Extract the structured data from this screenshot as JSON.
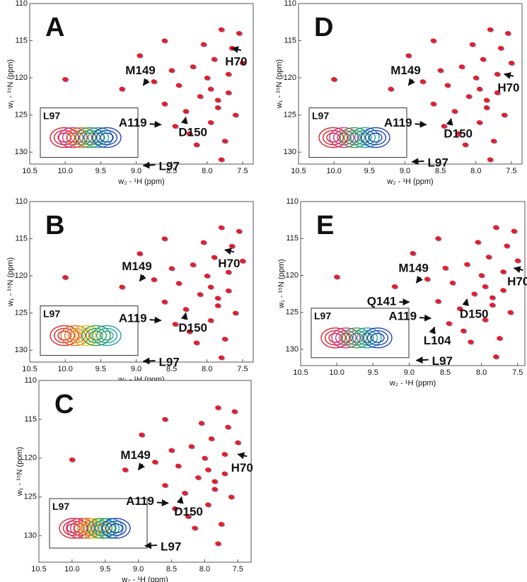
{
  "chart_data": [
    {
      "type": "scatter",
      "letter": "A",
      "xlabel": "w₂ - ¹H (ppm)",
      "ylabel": "w₁ - ¹⁵N (ppm)",
      "xlim": [
        10.5,
        7.35
      ],
      "ylim": [
        110,
        131.6
      ],
      "xticks": [
        10.5,
        {
          "value": 10,
          "label": "10.0"
        },
        9.5,
        {
          "value": 9,
          "label": "9.0"
        },
        8.5,
        {
          "value": 8,
          "label": "8.0"
        },
        7.5
      ],
      "yticks": [
        110,
        115,
        120,
        125,
        130
      ],
      "series": [
        {
          "color": "#e0202a",
          "x": [
            10.0,
            9.2,
            8.95,
            8.75,
            8.6,
            8.5,
            8.4,
            8.3,
            8.2,
            8.1,
            8.05,
            8.0,
            7.95,
            7.9,
            7.85,
            7.8,
            7.75,
            7.7,
            7.65,
            7.6,
            7.55,
            7.5,
            8.25,
            8.15,
            7.95,
            7.8,
            8.45,
            8.6,
            7.7,
            7.85
          ],
          "y": [
            120.2,
            121.5,
            117.0,
            120.5,
            123.5,
            119.0,
            121.0,
            124.5,
            118.5,
            122.5,
            115.5,
            120.0,
            126.0,
            117.5,
            123.0,
            113.5,
            128.5,
            119.5,
            116.0,
            125.0,
            114.0,
            118.0,
            127.5,
            129.0,
            121.5,
            131.0,
            126.5,
            115.0,
            122.0,
            124.0
          ]
        }
      ],
      "annotations": [
        {
          "text": "M149",
          "x": 8.9,
          "y": 121.0
        },
        {
          "text": "A119",
          "x": 8.65,
          "y": 126.3
        },
        {
          "text": "D150",
          "x": 8.3,
          "y": 125.3
        },
        {
          "text": "L97",
          "x": 8.9,
          "y": 131.8
        },
        {
          "text": "H70",
          "x": 7.65,
          "y": 116.0
        }
      ],
      "inset": {
        "label": "L97",
        "colors": [
          "#e0202a",
          "#d0308a",
          "#e07020",
          "#30a040",
          "#20a0a0",
          "#2040c0"
        ]
      }
    },
    {
      "type": "scatter",
      "letter": "B",
      "xlabel": "w₂ - ¹H (ppm)",
      "ylabel": "w₁ - ¹⁵N (ppm)",
      "xlim": [
        10.5,
        7.35
      ],
      "ylim": [
        110,
        131.6
      ],
      "xticks": [
        10.5,
        {
          "value": 10,
          "label": "10.0"
        },
        9.5,
        {
          "value": 9,
          "label": "9.0"
        },
        8.5,
        {
          "value": 8,
          "label": "8.0"
        },
        7.5
      ],
      "yticks": [
        110,
        115,
        120,
        125,
        130
      ],
      "series": [
        {
          "color": "#e0202a",
          "x": [
            10.0,
            9.2,
            8.95,
            8.75,
            8.6,
            8.5,
            8.4,
            8.3,
            8.2,
            8.1,
            8.05,
            8.0,
            7.95,
            7.9,
            7.85,
            7.8,
            7.75,
            7.7,
            7.65,
            7.6,
            7.55,
            7.5,
            8.25,
            8.15,
            7.95,
            7.8,
            8.45,
            8.6,
            7.7,
            7.85
          ],
          "y": [
            120.2,
            121.5,
            117.0,
            120.5,
            123.5,
            119.0,
            121.0,
            124.5,
            118.5,
            122.5,
            115.5,
            120.0,
            126.0,
            117.5,
            123.0,
            113.5,
            128.5,
            119.5,
            116.0,
            125.0,
            114.0,
            118.0,
            127.5,
            129.0,
            121.5,
            131.0,
            126.5,
            115.0,
            122.0,
            124.0
          ]
        }
      ],
      "annotations": [
        {
          "text": "M149",
          "x": 8.95,
          "y": 120.7
        },
        {
          "text": "A119",
          "x": 8.65,
          "y": 126.0
        },
        {
          "text": "D150",
          "x": 8.3,
          "y": 125.0
        },
        {
          "text": "L97",
          "x": 8.9,
          "y": 131.5
        },
        {
          "text": "H70",
          "x": 7.75,
          "y": 116.5
        }
      ],
      "inset": {
        "label": "L97",
        "colors": [
          "#e0202a",
          "#e07020",
          "#e0c020",
          "#30a040",
          "#20a0a0"
        ]
      }
    },
    {
      "type": "scatter",
      "letter": "C",
      "xlabel": "w₂ - ¹H (ppm)",
      "ylabel": "w₁ - ¹⁵N (ppm)",
      "xlim": [
        10.5,
        7.3
      ],
      "ylim": [
        110,
        133.4
      ],
      "xticks": [
        10.5,
        {
          "value": 10,
          "label": "10.0"
        },
        9.5,
        {
          "value": 9,
          "label": "9.0"
        },
        8.5,
        {
          "value": 8,
          "label": "8.0"
        },
        7.5
      ],
      "yticks": [
        110,
        115,
        120,
        125,
        130
      ],
      "series": [
        {
          "color": "#e0202a",
          "x": [
            10.0,
            9.2,
            8.95,
            8.75,
            8.6,
            8.5,
            8.4,
            8.3,
            8.2,
            8.1,
            8.05,
            8.0,
            7.95,
            7.9,
            7.85,
            7.8,
            7.75,
            7.7,
            7.65,
            7.6,
            7.55,
            7.5,
            8.25,
            8.15,
            7.95,
            7.8,
            8.45,
            8.6,
            7.7,
            7.85
          ],
          "y": [
            120.2,
            121.5,
            117.0,
            120.5,
            123.5,
            119.0,
            121.0,
            124.5,
            118.5,
            122.5,
            115.5,
            120.0,
            126.0,
            117.5,
            123.0,
            113.5,
            128.5,
            119.5,
            116.0,
            125.0,
            114.0,
            118.0,
            127.5,
            129.0,
            121.5,
            131.0,
            126.5,
            115.0,
            122.0,
            124.0
          ]
        }
      ],
      "annotations": [
        {
          "text": "M149",
          "x": 9.0,
          "y": 121.5
        },
        {
          "text": "A119",
          "x": 8.55,
          "y": 125.8
        },
        {
          "text": "D150",
          "x": 8.35,
          "y": 125.0
        },
        {
          "text": "L97",
          "x": 8.9,
          "y": 131.3
        },
        {
          "text": "H70",
          "x": 7.5,
          "y": 119.5
        }
      ],
      "inset": {
        "label": "L97",
        "colors": [
          "#e0202a",
          "#d0308a",
          "#e07020",
          "#e0c020",
          "#30a040",
          "#20a0a0",
          "#2040c0"
        ]
      }
    },
    {
      "type": "scatter",
      "letter": "D",
      "xlabel": "w₂ - ¹H (ppm)",
      "ylabel": "w₁ - ¹⁵N (ppm)",
      "xlim": [
        10.5,
        7.35
      ],
      "ylim": [
        110,
        131.6
      ],
      "xticks": [
        10.5,
        {
          "value": 10,
          "label": "10.0"
        },
        9.5,
        {
          "value": 9,
          "label": "9.0"
        },
        8.5,
        {
          "value": 8,
          "label": "8.0"
        },
        7.5
      ],
      "yticks": [
        110,
        115,
        120,
        125,
        130
      ],
      "series": [
        {
          "color": "#e0202a",
          "x": [
            10.0,
            9.2,
            8.95,
            8.75,
            8.6,
            8.5,
            8.4,
            8.3,
            8.2,
            8.1,
            8.05,
            8.0,
            7.95,
            7.9,
            7.85,
            7.8,
            7.75,
            7.7,
            7.65,
            7.6,
            7.55,
            7.5,
            8.25,
            8.15,
            7.95,
            7.8,
            8.45,
            8.6,
            7.7,
            7.85
          ],
          "y": [
            120.2,
            121.5,
            117.0,
            120.5,
            123.5,
            119.0,
            121.0,
            124.5,
            118.5,
            122.5,
            115.5,
            120.0,
            126.0,
            117.5,
            123.0,
            113.5,
            128.5,
            119.5,
            116.0,
            125.0,
            114.0,
            118.0,
            127.5,
            129.0,
            121.5,
            131.0,
            126.5,
            115.0,
            122.0,
            124.0
          ]
        }
      ],
      "annotations": [
        {
          "text": "M149",
          "x": 8.95,
          "y": 121.0
        },
        {
          "text": "A119",
          "x": 8.7,
          "y": 126.3
        },
        {
          "text": "D150",
          "x": 8.35,
          "y": 125.5
        },
        {
          "text": "L97",
          "x": 8.9,
          "y": 131.3
        },
        {
          "text": "H70",
          "x": 7.6,
          "y": 119.5
        }
      ],
      "inset": {
        "label": "L97",
        "colors": [
          "#e0202a",
          "#d0308a",
          "#30a040",
          "#20a0a0",
          "#2040c0"
        ]
      }
    },
    {
      "type": "scatter",
      "letter": "E",
      "xlabel": "w₂ - ¹H (ppm)",
      "ylabel": "w₁ - ¹⁵N (ppm)",
      "xlim": [
        10.5,
        7.4
      ],
      "ylim": [
        110,
        132.2
      ],
      "xticks": [
        10.5,
        {
          "value": 10,
          "label": "10.0"
        },
        9.5,
        {
          "value": 9,
          "label": "9.0"
        },
        8.5,
        {
          "value": 8,
          "label": "8.0"
        },
        7.5
      ],
      "yticks": [
        110,
        115,
        120,
        125,
        130
      ],
      "series": [
        {
          "color": "#e0202a",
          "x": [
            10.0,
            9.2,
            8.95,
            8.75,
            8.6,
            8.5,
            8.4,
            8.3,
            8.2,
            8.1,
            8.05,
            8.0,
            7.95,
            7.9,
            7.85,
            7.8,
            7.75,
            7.7,
            7.65,
            7.6,
            7.55,
            7.5,
            8.25,
            8.15,
            7.95,
            7.8,
            8.45,
            8.6,
            7.7,
            7.85
          ],
          "y": [
            120.2,
            121.5,
            117.0,
            120.5,
            123.5,
            119.0,
            121.0,
            124.5,
            118.5,
            122.5,
            115.5,
            120.0,
            126.0,
            117.5,
            123.0,
            113.5,
            128.5,
            119.5,
            116.0,
            125.0,
            114.0,
            118.0,
            127.5,
            129.0,
            121.5,
            131.0,
            126.5,
            115.0,
            122.0,
            124.0
          ]
        }
      ],
      "annotations": [
        {
          "text": "M149",
          "x": 8.9,
          "y": 121.0
        },
        {
          "text": "A119",
          "x": 8.7,
          "y": 125.8
        },
        {
          "text": "D150",
          "x": 8.2,
          "y": 123.2
        },
        {
          "text": "L97",
          "x": 8.9,
          "y": 131.5
        },
        {
          "text": "H70",
          "x": 7.55,
          "y": 119.0
        },
        {
          "text": "Q141",
          "x": 9.0,
          "y": 123.6
        },
        {
          "text": "L104",
          "x": 8.65,
          "y": 127.0
        }
      ],
      "inset": {
        "label": "L97",
        "colors": [
          "#e0202a",
          "#d0308a",
          "#30a040",
          "#20a0a0",
          "#2040c0"
        ]
      }
    }
  ]
}
